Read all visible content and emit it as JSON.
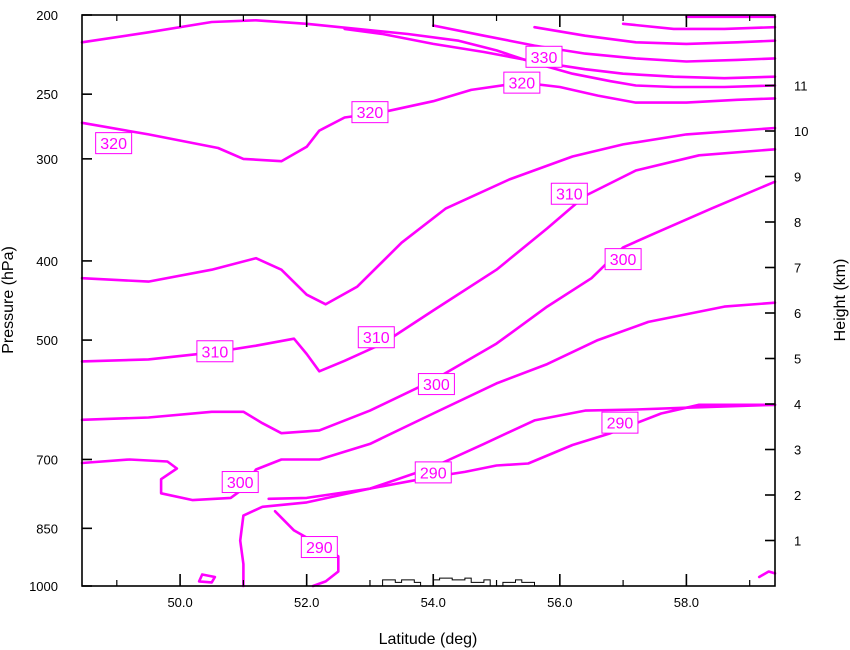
{
  "chart_data": {
    "type": "contour",
    "xlabel": "Latitude (deg)",
    "ylabel": "Pressure (hPa)",
    "y2label": "Height (km)",
    "xlim": [
      48.45,
      59.4
    ],
    "ylim": [
      1000,
      200
    ],
    "y_scale": "log",
    "x_ticks": [
      "50.0",
      "52.0",
      "54.0",
      "56.0",
      "58.0"
    ],
    "y_ticks": [
      200,
      250,
      300,
      400,
      500,
      700,
      850,
      1000
    ],
    "y2_ticks": [
      1,
      2,
      3,
      4,
      5,
      6,
      7,
      8,
      9,
      10,
      11
    ],
    "line_color": "#ff00ff",
    "grid": false,
    "contours": [
      {
        "level": 330,
        "points": [
          [
            52.6,
            208
          ],
          [
            53.2,
            211
          ],
          [
            54.0,
            217
          ],
          [
            54.8,
            222
          ],
          [
            55.6,
            228
          ],
          [
            56.4,
            233
          ],
          [
            57.0,
            236
          ],
          [
            57.8,
            238
          ],
          [
            58.6,
            239
          ],
          [
            59.4,
            238
          ]
        ]
      },
      {
        "level": 330,
        "points": [
          [
            54.0,
            206
          ],
          [
            54.8,
            212
          ],
          [
            55.6,
            218
          ],
          [
            56.4,
            223
          ],
          [
            57.2,
            226
          ],
          [
            58.0,
            228
          ],
          [
            58.8,
            227
          ],
          [
            59.4,
            226
          ]
        ]
      },
      {
        "level": 330,
        "points": [
          [
            55.6,
            207
          ],
          [
            56.4,
            212
          ],
          [
            57.2,
            216
          ],
          [
            58.0,
            217
          ],
          [
            58.8,
            216
          ],
          [
            59.4,
            215
          ]
        ]
      },
      {
        "level": 330,
        "points": [
          [
            57.0,
            205
          ],
          [
            57.8,
            208
          ],
          [
            58.6,
            208
          ],
          [
            59.4,
            207
          ]
        ]
      },
      {
        "level": 330,
        "points": [
          [
            58.0,
            201
          ],
          [
            58.8,
            201
          ],
          [
            59.4,
            201
          ]
        ]
      },
      {
        "level": 320,
        "points": [
          [
            48.45,
            216
          ],
          [
            49.5,
            210
          ],
          [
            50.5,
            204
          ],
          [
            51.2,
            203
          ],
          [
            52.0,
            205
          ],
          [
            52.8,
            208
          ],
          [
            53.6,
            211
          ],
          [
            54.4,
            215
          ],
          [
            55.0,
            221
          ],
          [
            55.6,
            229
          ],
          [
            56.2,
            236
          ],
          [
            56.8,
            241
          ],
          [
            57.2,
            244
          ],
          [
            57.8,
            245
          ],
          [
            58.6,
            245
          ],
          [
            59.4,
            244
          ]
        ]
      },
      {
        "level": 320,
        "points": [
          [
            48.45,
            271
          ],
          [
            49.5,
            280
          ],
          [
            50.6,
            291
          ],
          [
            51.0,
            300
          ],
          [
            51.6,
            302
          ],
          [
            52.0,
            290
          ],
          [
            52.2,
            277
          ],
          [
            52.6,
            267
          ],
          [
            53.2,
            263
          ],
          [
            54.0,
            255
          ],
          [
            54.6,
            247
          ],
          [
            55.4,
            242
          ],
          [
            56.0,
            245
          ],
          [
            56.6,
            251
          ],
          [
            57.2,
            256
          ],
          [
            58.0,
            256
          ],
          [
            58.8,
            254
          ],
          [
            59.4,
            253
          ]
        ]
      },
      {
        "level": 310,
        "points": [
          [
            48.45,
            420
          ],
          [
            49.5,
            424
          ],
          [
            50.5,
            410
          ],
          [
            51.2,
            397
          ],
          [
            51.6,
            410
          ],
          [
            52.0,
            440
          ],
          [
            52.3,
            452
          ],
          [
            52.8,
            430
          ],
          [
            53.5,
            380
          ],
          [
            54.2,
            345
          ],
          [
            55.2,
            318
          ],
          [
            56.2,
            298
          ],
          [
            57.0,
            288
          ],
          [
            58.0,
            280
          ],
          [
            59.4,
            275
          ]
        ]
      },
      {
        "level": 310,
        "points": [
          [
            48.45,
            531
          ],
          [
            49.5,
            528
          ],
          [
            50.5,
            518
          ],
          [
            51.2,
            508
          ],
          [
            51.8,
            498
          ],
          [
            52.0,
            520
          ],
          [
            52.2,
            546
          ],
          [
            52.6,
            530
          ],
          [
            53.2,
            505
          ],
          [
            54.0,
            460
          ],
          [
            55.0,
            410
          ],
          [
            55.8,
            365
          ],
          [
            56.4,
            333
          ],
          [
            57.2,
            310
          ],
          [
            58.2,
            297
          ],
          [
            59.4,
            292
          ]
        ]
      },
      {
        "level": 300,
        "points": [
          [
            48.45,
            626
          ],
          [
            49.5,
            622
          ],
          [
            50.5,
            612
          ],
          [
            51.0,
            612
          ],
          [
            51.3,
            632
          ],
          [
            51.6,
            650
          ],
          [
            52.2,
            645
          ],
          [
            53.0,
            610
          ],
          [
            54.0,
            560
          ],
          [
            55.0,
            505
          ],
          [
            55.8,
            455
          ],
          [
            56.5,
            420
          ],
          [
            57.0,
            385
          ],
          [
            57.5,
            370
          ],
          [
            58.4,
            345
          ],
          [
            59.4,
            320
          ]
        ]
      },
      {
        "level": 300,
        "points": [
          [
            48.45,
            707
          ],
          [
            49.2,
            700
          ],
          [
            49.8,
            704
          ],
          [
            49.95,
            718
          ],
          [
            49.7,
            740
          ],
          [
            49.7,
            770
          ],
          [
            50.2,
            785
          ],
          [
            50.8,
            780
          ],
          [
            51.0,
            760
          ],
          [
            51.2,
            720
          ],
          [
            51.6,
            700
          ],
          [
            52.2,
            700
          ],
          [
            53.0,
            670
          ],
          [
            54.0,
            615
          ],
          [
            55.0,
            565
          ],
          [
            55.8,
            535
          ],
          [
            56.6,
            500
          ],
          [
            57.4,
            475
          ],
          [
            58.6,
            455
          ],
          [
            59.4,
            450
          ]
        ]
      },
      {
        "level": 300,
        "points": [
          [
            51.0,
            1000
          ],
          [
            51.0,
            940
          ],
          [
            50.95,
            880
          ],
          [
            51.0,
            820
          ],
          [
            51.3,
            800
          ],
          [
            52.0,
            790
          ],
          [
            53.0,
            760
          ],
          [
            54.0,
            715
          ],
          [
            54.8,
            670
          ],
          [
            55.6,
            627
          ],
          [
            56.4,
            610
          ],
          [
            57.2,
            608
          ],
          [
            58.0,
            605
          ],
          [
            59.4,
            600
          ]
        ]
      },
      {
        "level": 290,
        "points": [
          [
            51.4,
            782
          ],
          [
            52.0,
            780
          ],
          [
            53.0,
            760
          ],
          [
            54.0,
            735
          ],
          [
            54.5,
            725
          ],
          [
            55.0,
            712
          ],
          [
            55.5,
            708
          ],
          [
            56.2,
            672
          ],
          [
            56.8,
            650
          ],
          [
            57.6,
            615
          ],
          [
            58.2,
            600
          ],
          [
            59.4,
            600
          ]
        ]
      },
      {
        "level": 290,
        "points": [
          [
            52.1,
            1000
          ],
          [
            52.3,
            987
          ],
          [
            52.5,
            960
          ],
          [
            52.5,
            920
          ],
          [
            52.2,
            890
          ],
          [
            51.8,
            855
          ],
          [
            51.5,
            810
          ]
        ]
      },
      {
        "level": 290,
        "points": [
          [
            50.35,
            968
          ],
          [
            50.55,
            975
          ],
          [
            50.5,
            990
          ],
          [
            50.3,
            987
          ],
          [
            50.35,
            968
          ]
        ]
      },
      {
        "level": 290,
        "points": [
          [
            59.15,
            975
          ],
          [
            59.3,
            960
          ],
          [
            59.4,
            965
          ]
        ]
      }
    ],
    "contour_labels": [
      {
        "text": "330",
        "x": 55.75,
        "y": 225
      },
      {
        "text": "320",
        "x": 55.4,
        "y": 242
      },
      {
        "text": "320",
        "x": 48.95,
        "y": 287
      },
      {
        "text": "320",
        "x": 53.0,
        "y": 263
      },
      {
        "text": "310",
        "x": 56.15,
        "y": 331
      },
      {
        "text": "310",
        "x": 50.55,
        "y": 516
      },
      {
        "text": "310",
        "x": 53.1,
        "y": 496
      },
      {
        "text": "300",
        "x": 57.0,
        "y": 398
      },
      {
        "text": "300",
        "x": 54.05,
        "y": 566
      },
      {
        "text": "300",
        "x": 50.95,
        "y": 746
      },
      {
        "text": "290",
        "x": 56.95,
        "y": 631
      },
      {
        "text": "290",
        "x": 54.0,
        "y": 726
      },
      {
        "text": "290",
        "x": 52.2,
        "y": 896
      }
    ],
    "terrain": {
      "color": "#000000",
      "x": [
        53.1,
        53.2,
        53.4,
        53.5,
        53.7,
        53.8,
        54.0,
        54.1,
        54.3,
        54.5,
        54.6,
        54.8,
        54.9,
        55.1,
        55.3,
        55.4,
        55.6
      ],
      "y": [
        1000,
        983,
        990,
        983,
        990,
        1000,
        983,
        978,
        983,
        978,
        990,
        983,
        1000,
        990,
        983,
        990,
        1000
      ]
    }
  }
}
